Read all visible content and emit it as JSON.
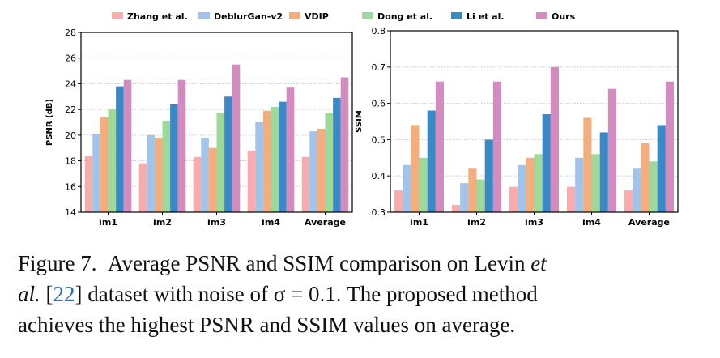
{
  "chart_data": [
    {
      "type": "bar",
      "ylabel": "PSNR (dB)",
      "ylim": [
        14,
        28
      ],
      "yticks": [
        14,
        16,
        18,
        20,
        22,
        24,
        26,
        28
      ],
      "grid": "horizontal dotted",
      "categories": [
        "im1",
        "im2",
        "im3",
        "im4",
        "Average"
      ],
      "series": [
        {
          "name": "Zhang et al.",
          "values": [
            18.4,
            17.8,
            18.3,
            18.8,
            18.3
          ]
        },
        {
          "name": "DeblurGan-v2",
          "values": [
            20.1,
            20.0,
            19.8,
            21.0,
            20.3
          ]
        },
        {
          "name": "VDIP",
          "values": [
            21.4,
            19.8,
            19.0,
            21.9,
            20.5
          ]
        },
        {
          "name": "Dong et al.",
          "values": [
            22.0,
            21.1,
            21.7,
            22.2,
            21.7
          ]
        },
        {
          "name": "Li et al.",
          "values": [
            23.8,
            22.4,
            23.0,
            22.6,
            22.9
          ]
        },
        {
          "name": "Ours",
          "values": [
            24.3,
            24.3,
            25.5,
            23.7,
            24.5
          ]
        }
      ]
    },
    {
      "type": "bar",
      "ylabel": "SSIM",
      "ylim": [
        0.3,
        0.8
      ],
      "yticks": [
        0.3,
        0.4,
        0.5,
        0.6,
        0.7,
        0.8
      ],
      "grid": "horizontal dotted",
      "categories": [
        "im1",
        "im2",
        "im3",
        "im4",
        "Average"
      ],
      "series": [
        {
          "name": "Zhang et al.",
          "values": [
            0.36,
            0.32,
            0.37,
            0.37,
            0.36
          ]
        },
        {
          "name": "DeblurGan-v2",
          "values": [
            0.43,
            0.38,
            0.43,
            0.45,
            0.42
          ]
        },
        {
          "name": "VDIP",
          "values": [
            0.54,
            0.42,
            0.45,
            0.56,
            0.49
          ]
        },
        {
          "name": "Dong et al.",
          "values": [
            0.45,
            0.39,
            0.46,
            0.46,
            0.44
          ]
        },
        {
          "name": "Li et al.",
          "values": [
            0.58,
            0.5,
            0.57,
            0.52,
            0.54
          ]
        },
        {
          "name": "Ours",
          "values": [
            0.66,
            0.66,
            0.7,
            0.64,
            0.66
          ]
        }
      ]
    }
  ],
  "legend": {
    "placement": "top",
    "entries": [
      "Zhang et al.",
      "DeblurGan-v2",
      "VDIP",
      "Dong et al.",
      "Li et al.",
      "Ours"
    ]
  },
  "colors": [
    "#f7adad",
    "#a3c4e8",
    "#f3ae7f",
    "#9ed89a",
    "#3b88c4",
    "#d38cbf"
  ],
  "caption": {
    "label": "Figure 7.",
    "line1": "Average PSNR and SSIM comparison on Levin",
    "et": "et",
    "al": "al.",
    "ref_open": "[",
    "ref": "22",
    "ref_close": "]",
    "line2_rest": "dataset with noise of σ = 0.1. The proposed method",
    "line3": "achieves the highest PSNR and SSIM values on average."
  }
}
